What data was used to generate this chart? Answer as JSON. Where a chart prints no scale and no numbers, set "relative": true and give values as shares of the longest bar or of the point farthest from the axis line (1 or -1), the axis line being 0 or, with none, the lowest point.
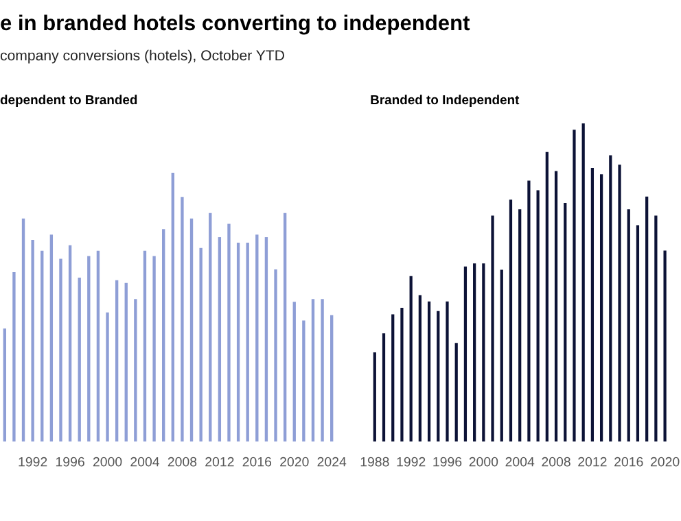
{
  "chart_data": [
    {
      "type": "bar",
      "title": "e in branded hotels converting to independent",
      "subtitle": "company conversions (hotels), October YTD",
      "relative": true,
      "color": "#8e9ed6",
      "categories": [
        null,
        null,
        null,
        "1992",
        null,
        null,
        null,
        "1996",
        null,
        null,
        null,
        "2000",
        null,
        null,
        null,
        "2004",
        null,
        null,
        null,
        "2008",
        null,
        null,
        null,
        "2012",
        null,
        null,
        null,
        "2016",
        null,
        null,
        null,
        "2020",
        null,
        null,
        null,
        "2024"
      ],
      "values": [
        0.42,
        0.63,
        0.83,
        0.75,
        0.71,
        0.77,
        0.68,
        0.73,
        0.61,
        0.69,
        0.71,
        0.48,
        0.6,
        0.59,
        0.53,
        0.71,
        0.69,
        0.79,
        1.0,
        0.91,
        0.83,
        0.72,
        0.85,
        0.76,
        0.81,
        0.74,
        0.74,
        0.77,
        0.76,
        0.64,
        0.85,
        0.52,
        0.45,
        0.53,
        0.53,
        0.47
      ],
      "annotations": [
        "dependent to Branded"
      ]
    },
    {
      "type": "bar",
      "relative": true,
      "color": "#0c1236",
      "categories": [
        "1988",
        null,
        null,
        null,
        "1992",
        null,
        null,
        null,
        "1996",
        null,
        null,
        null,
        "2000",
        null,
        null,
        null,
        "2004",
        null,
        null,
        null,
        "2008",
        null,
        null,
        null,
        "2012",
        null,
        null,
        null,
        "2016",
        null,
        null,
        null,
        "2020"
      ],
      "values": [
        0.28,
        0.34,
        0.4,
        0.42,
        0.52,
        0.46,
        0.44,
        0.41,
        0.44,
        0.31,
        0.55,
        0.56,
        0.56,
        0.71,
        0.54,
        0.76,
        0.73,
        0.82,
        0.79,
        0.91,
        0.85,
        0.75,
        0.98,
        1.0,
        0.86,
        0.84,
        0.9,
        0.87,
        0.73,
        0.68,
        0.77,
        0.71,
        0.6
      ],
      "annotations": [
        "Branded to Independent"
      ]
    }
  ]
}
